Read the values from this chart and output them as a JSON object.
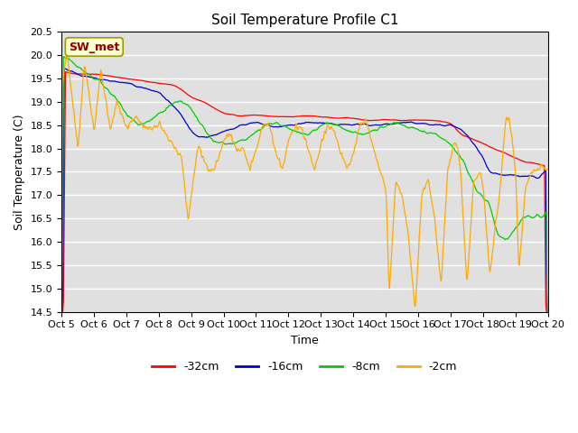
{
  "title": "Soil Temperature Profile C1",
  "xlabel": "Time",
  "ylabel": "Soil Temperature (C)",
  "ylim": [
    14.5,
    20.5
  ],
  "xlim": [
    0,
    15
  ],
  "yticks": [
    14.5,
    15.0,
    15.5,
    16.0,
    16.5,
    17.0,
    17.5,
    18.0,
    18.5,
    19.0,
    19.5,
    20.0,
    20.5
  ],
  "xtick_labels": [
    "Oct 5",
    "Oct 6",
    "Oct 7",
    "Oct 8",
    "Oct 9",
    "Oct 10",
    "Oct 11",
    "Oct 12",
    "Oct 13",
    "Oct 14",
    "Oct 15",
    "Oct 16",
    "Oct 17",
    "Oct 18",
    "Oct 19",
    "Oct 20"
  ],
  "legend_labels": [
    "-32cm",
    "-16cm",
    "-8cm",
    "-2cm"
  ],
  "line_colors": [
    "#ff0000",
    "#0000cc",
    "#00cc00",
    "#ffaa00"
  ],
  "annotation_text": "SW_met",
  "annotation_color": "#8b0000",
  "annotation_bg": "#ffffcc",
  "background_color": "#e0e0e0",
  "fig_bg": "#ffffff",
  "title_fontsize": 11,
  "axis_fontsize": 9,
  "tick_fontsize": 8
}
